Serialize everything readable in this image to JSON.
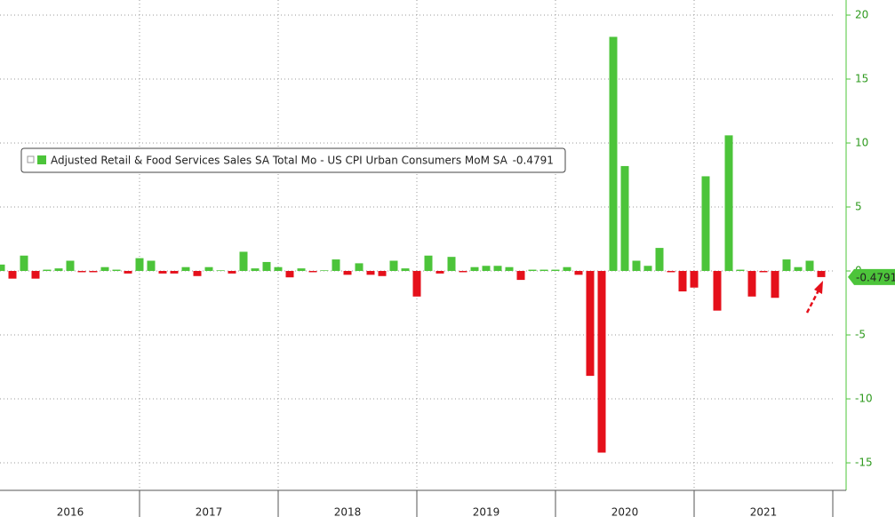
{
  "chart_data": {
    "type": "bar",
    "series": [
      {
        "name": "Adjusted Retail & Food Services Sales SA Total Mo - US CPI Urban Consumers MoM SA",
        "color": "#4cc43a",
        "negative_color": "#e5101b",
        "values": [
          0.5,
          -0.6,
          1.2,
          -0.6,
          0.1,
          0.2,
          0.8,
          -0.1,
          -0.1,
          0.3,
          0.1,
          -0.2,
          1.0,
          0.8,
          -0.2,
          -0.2,
          0.3,
          -0.4,
          0.3,
          0.05,
          -0.2,
          1.5,
          0.2,
          0.7,
          0.3,
          -0.5,
          0.2,
          -0.1,
          0.05,
          0.9,
          -0.3,
          0.6,
          -0.3,
          -0.4,
          0.8,
          0.2,
          -2.0,
          1.2,
          -0.2,
          1.1,
          -0.1,
          0.3,
          0.4,
          0.4,
          0.3,
          -0.7,
          0.1,
          0.1,
          0.1,
          0.3,
          -0.3,
          -8.2,
          -14.2,
          18.3,
          8.2,
          0.8,
          0.4,
          1.8,
          -0.1,
          -1.6,
          -1.3,
          7.4,
          -3.1,
          10.6,
          0.1,
          -2.0,
          -0.1,
          -2.1,
          0.9,
          0.3,
          0.8,
          -0.4791
        ]
      }
    ],
    "categories": [
      null,
      null,
      null,
      null,
      null,
      null,
      null,
      null,
      null,
      null,
      null,
      null,
      null,
      null,
      null,
      null,
      null,
      null,
      null,
      null,
      null,
      null,
      null,
      null,
      null,
      null,
      null,
      null,
      null,
      null,
      null,
      null,
      null,
      null,
      null,
      null,
      null,
      null,
      null,
      null,
      null,
      null,
      null,
      null,
      null,
      null,
      null,
      null,
      null,
      null,
      null,
      null,
      null,
      null,
      null,
      null,
      null,
      null,
      null,
      null,
      null,
      null,
      null,
      null,
      null,
      null,
      null,
      null,
      null,
      null,
      null,
      null
    ],
    "year_labels": [
      "2016",
      "2017",
      "2018",
      "2019",
      "2020",
      "2021"
    ],
    "ylim": [
      -17.15,
      21.18
    ],
    "yticks": [
      20,
      15,
      10,
      5,
      0,
      -5,
      -10,
      -15
    ],
    "grid": true,
    "y_axis_side": "right"
  }
}
